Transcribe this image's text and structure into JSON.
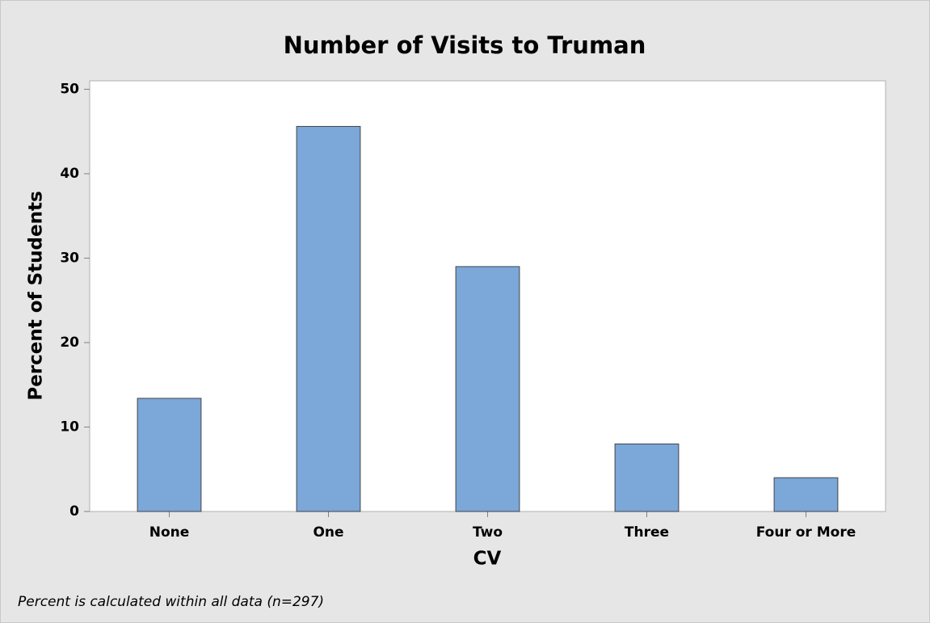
{
  "chart_data": {
    "type": "bar",
    "title": "Number of Visits to Truman",
    "x_label": "CV",
    "y_label": "Percent of Students",
    "footnote": "Percent is calculated within all data (n=297)",
    "categories": [
      "None",
      "One",
      "Two",
      "Three",
      "Four or More"
    ],
    "values": [
      13.4,
      45.6,
      29.0,
      8.0,
      4.0
    ],
    "color": "#7ba7d9",
    "ylim": [
      0,
      51
    ],
    "yticks": [
      0,
      10,
      20,
      30,
      40,
      50
    ],
    "grid": false
  }
}
